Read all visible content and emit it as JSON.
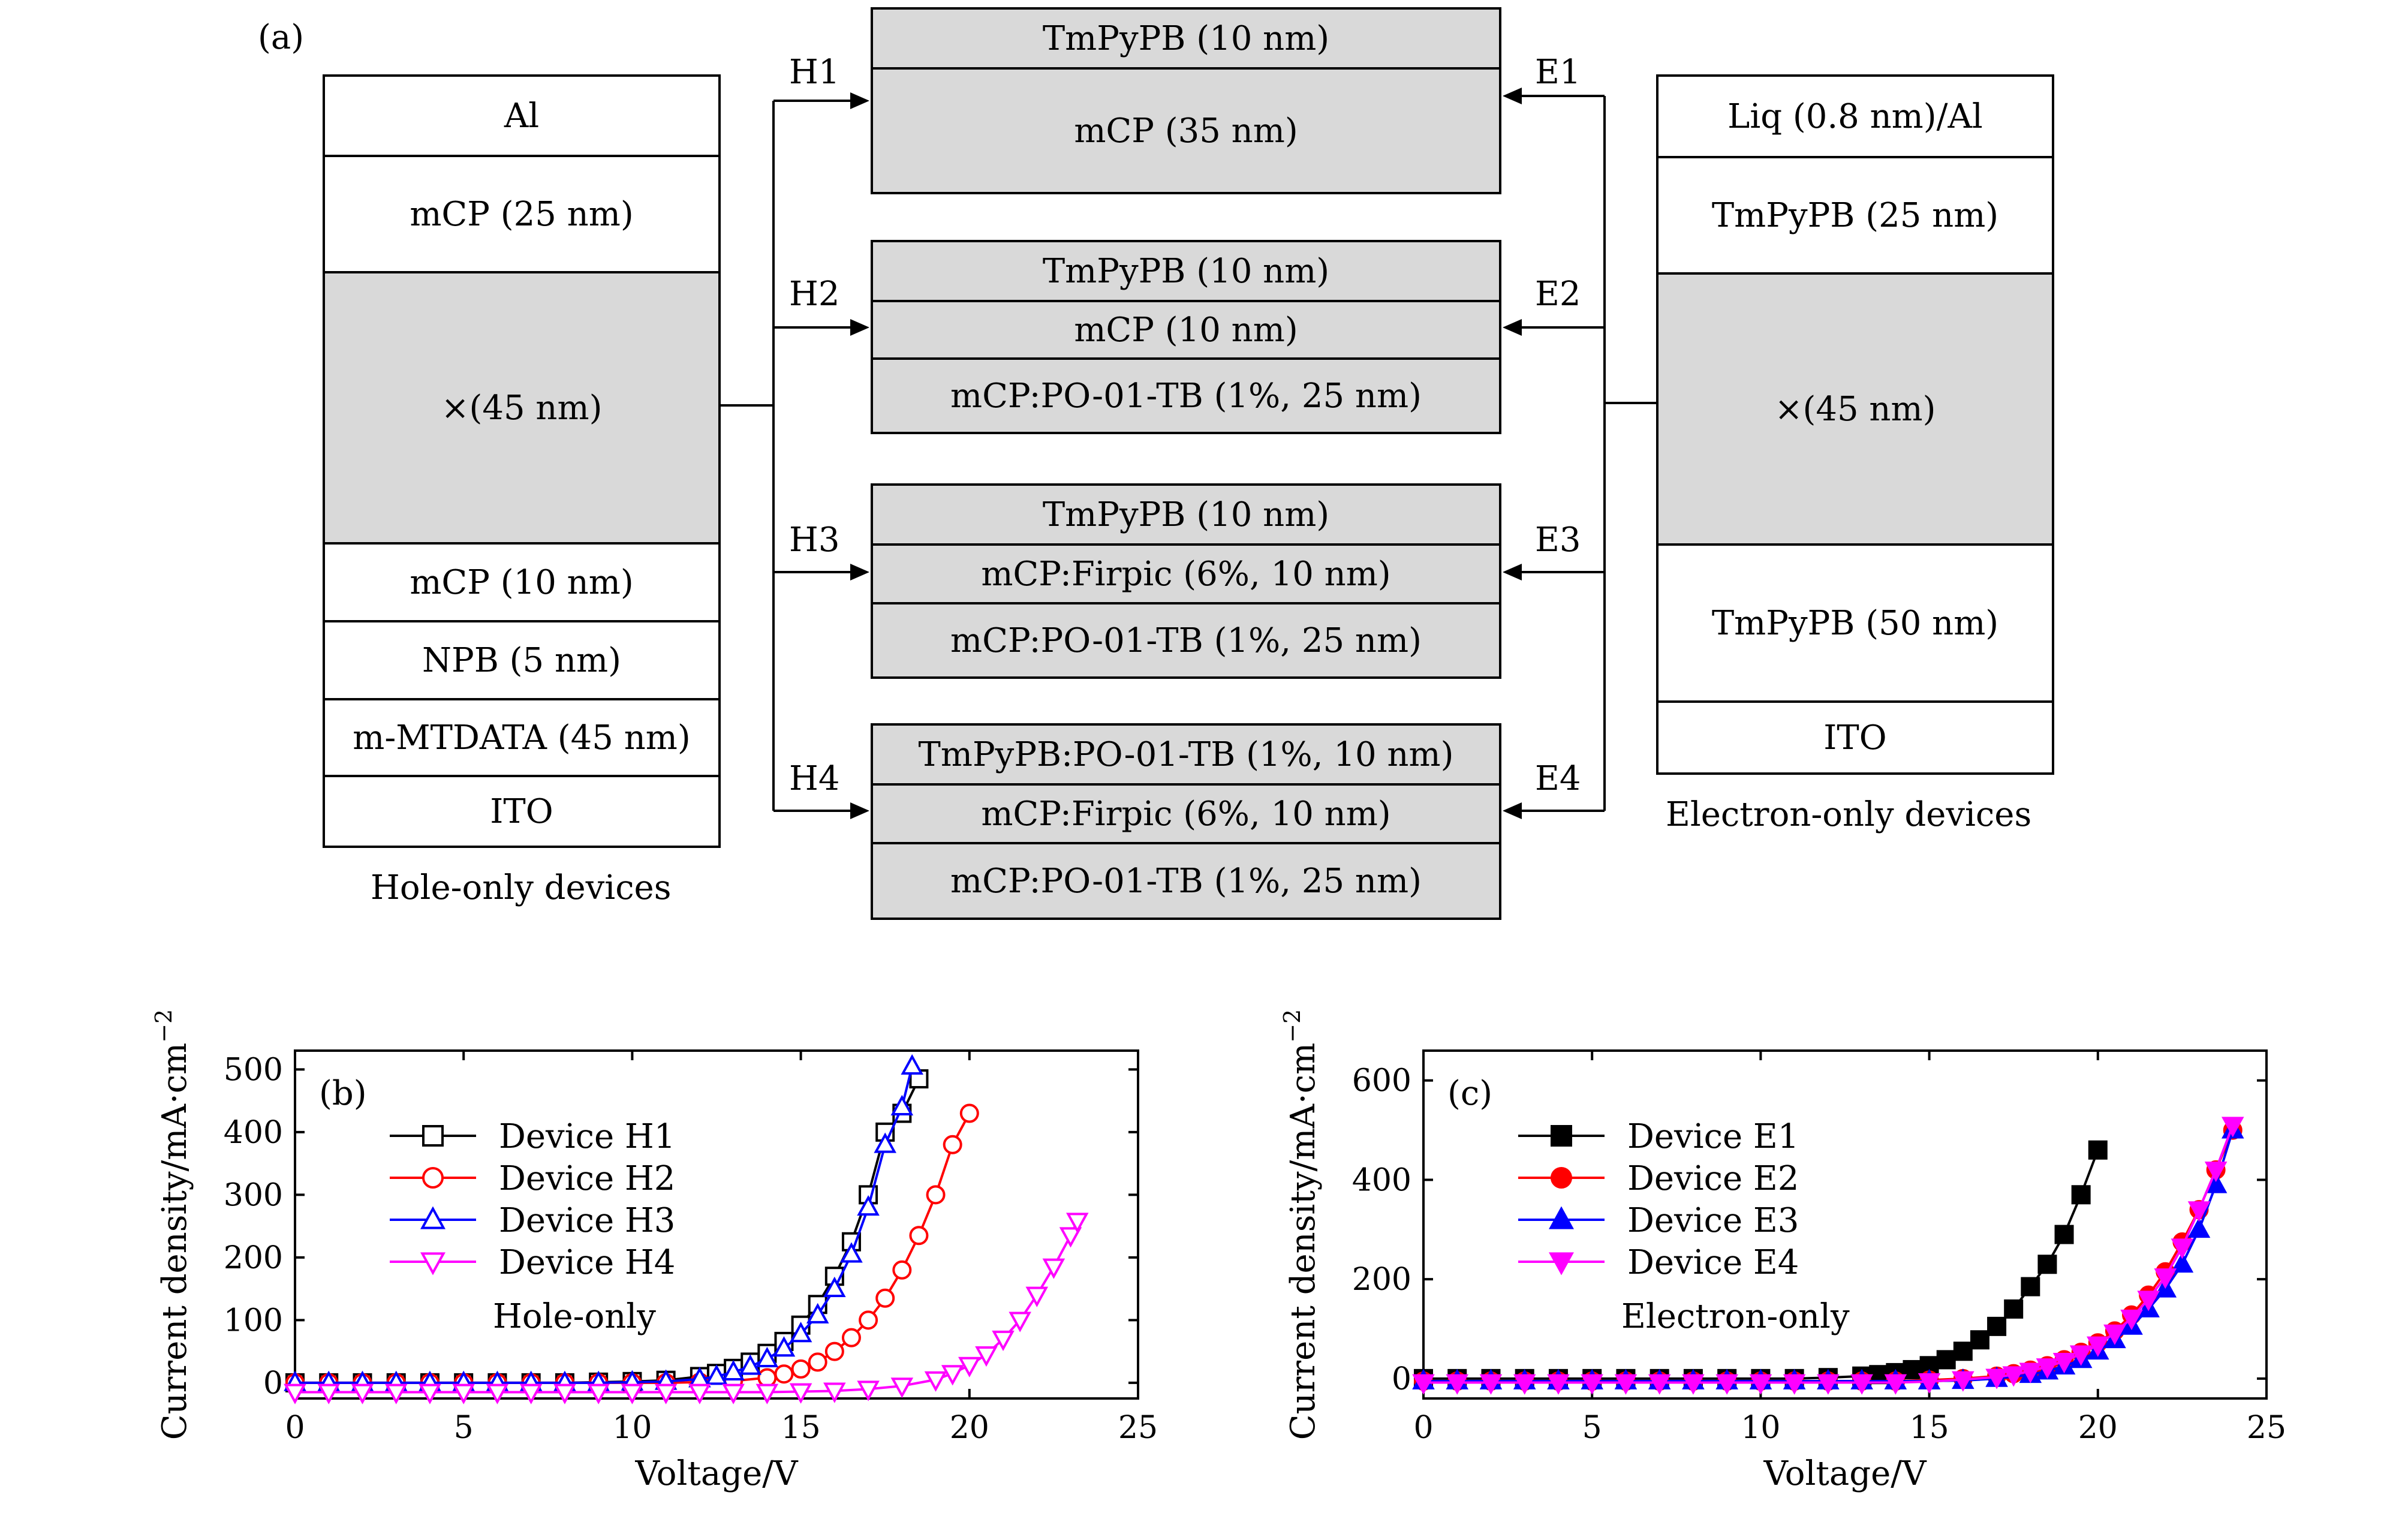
{
  "panel_a": {
    "label": "(a)",
    "hole_stack": [
      "Al",
      "mCP (25 nm)",
      "×(45 nm)",
      "mCP (10 nm)",
      "NPB (5 nm)",
      "m-MTDATA (45 nm)",
      "ITO"
    ],
    "hole_caption": "Hole-only devices",
    "electron_stack": [
      "Liq (0.8 nm)/Al",
      "TmPyPB (25 nm)",
      "×(45 nm)",
      "TmPyPB (50 nm)",
      "ITO"
    ],
    "electron_caption": "Electron-only devices",
    "devices": [
      {
        "h": "H1",
        "e": "E1",
        "layers": [
          "TmPyPB (10 nm)",
          "mCP (35 nm)"
        ]
      },
      {
        "h": "H2",
        "e": "E2",
        "layers": [
          "TmPyPB (10 nm)",
          "mCP (10 nm)",
          "mCP:PO-01-TB (1%, 25 nm)"
        ]
      },
      {
        "h": "H3",
        "e": "E3",
        "layers": [
          "TmPyPB (10 nm)",
          "mCP:Firpic (6%, 10 nm)",
          "mCP:PO-01-TB (1%, 25 nm)"
        ]
      },
      {
        "h": "H4",
        "e": "E4",
        "layers": [
          "TmPyPB:PO-01-TB (1%, 10 nm)",
          "mCP:Firpic (6%, 10 nm)",
          "mCP:PO-01-TB (1%, 25 nm)"
        ]
      }
    ]
  },
  "chart_data": [
    {
      "type": "line",
      "panel_label": "(b)",
      "annotation": "Hole-only",
      "xlabel": "Voltage/V",
      "ylabel": "Current density/mA·cm",
      "ylabel_sup": "−2",
      "xlim": [
        0,
        25
      ],
      "ylim": [
        -25,
        530
      ],
      "xticks": [
        0,
        5,
        10,
        15,
        20,
        25
      ],
      "yticks": [
        0,
        100,
        200,
        300,
        400,
        500
      ],
      "legend_position": "top-left",
      "series": [
        {
          "name": "Device H1",
          "color": "#000000",
          "marker": "square-open",
          "x": [
            0,
            1,
            2,
            3,
            4,
            5,
            6,
            7,
            8,
            9,
            10,
            11,
            12,
            12.5,
            13,
            13.5,
            14,
            14.5,
            15,
            15.5,
            16,
            16.5,
            17,
            17.5,
            18,
            18.5
          ],
          "y": [
            0,
            0,
            0,
            0,
            0,
            0,
            0,
            0,
            0,
            1,
            2,
            4,
            10,
            15,
            23,
            33,
            47,
            66,
            92,
            125,
            170,
            225,
            300,
            400,
            430,
            485
          ]
        },
        {
          "name": "Device H2",
          "color": "#ff0000",
          "marker": "circle-open",
          "x": [
            0,
            1,
            2,
            3,
            4,
            5,
            6,
            7,
            8,
            9,
            10,
            11,
            12,
            13,
            14,
            14.5,
            15,
            15.5,
            16,
            16.5,
            17,
            17.5,
            18,
            18.5,
            19,
            19.5,
            20
          ],
          "y": [
            0,
            0,
            0,
            0,
            0,
            0,
            0,
            0,
            0,
            0,
            0,
            0,
            1,
            3,
            8,
            14,
            22,
            33,
            50,
            72,
            100,
            135,
            180,
            235,
            300,
            380,
            430
          ]
        },
        {
          "name": "Device H3",
          "color": "#0000ff",
          "marker": "triangle-up-open",
          "x": [
            0,
            1,
            2,
            3,
            4,
            5,
            6,
            7,
            8,
            9,
            10,
            11,
            12,
            12.5,
            13,
            13.5,
            14,
            14.5,
            15,
            15.5,
            16,
            16.5,
            17,
            17.5,
            18,
            18.3
          ],
          "y": [
            0,
            0,
            0,
            0,
            0,
            0,
            0,
            0,
            0,
            0,
            1,
            2,
            6,
            10,
            17,
            26,
            38,
            55,
            78,
            108,
            150,
            205,
            280,
            380,
            440,
            505
          ]
        },
        {
          "name": "Device H4",
          "color": "#ff00ff",
          "marker": "triangle-down-open",
          "x": [
            0,
            1,
            2,
            3,
            4,
            5,
            6,
            7,
            8,
            9,
            10,
            11,
            12,
            13,
            14,
            15,
            16,
            17,
            18,
            19,
            19.5,
            20,
            20.5,
            21,
            21.5,
            22,
            22.5,
            23,
            23.2
          ],
          "y": [
            -15,
            -15,
            -15,
            -15,
            -15,
            -15,
            -15,
            -15,
            -15,
            -15,
            -15,
            -15,
            -15,
            -15,
            -15,
            -14,
            -13,
            -10,
            -5,
            5,
            15,
            28,
            45,
            70,
            100,
            140,
            185,
            235,
            258
          ]
        }
      ]
    },
    {
      "type": "line",
      "panel_label": "(c)",
      "annotation": "Electron-only",
      "xlabel": "Voltage/V",
      "ylabel": "Current density/mA·cm",
      "ylabel_sup": "−2",
      "xlim": [
        0,
        25
      ],
      "ylim": [
        -40,
        660
      ],
      "xticks": [
        0,
        5,
        10,
        15,
        20,
        25
      ],
      "yticks": [
        0,
        200,
        400,
        600
      ],
      "legend_position": "top-left",
      "series": [
        {
          "name": "Device E1",
          "color": "#000000",
          "marker": "square-filled",
          "x": [
            0,
            1,
            2,
            3,
            4,
            5,
            6,
            7,
            8,
            9,
            10,
            11,
            12,
            13,
            13.5,
            14,
            14.5,
            15,
            15.5,
            16,
            16.5,
            17,
            17.5,
            18,
            18.5,
            19,
            19.5,
            20
          ],
          "y": [
            0,
            0,
            0,
            0,
            0,
            0,
            0,
            0,
            0,
            0,
            0,
            0,
            2,
            5,
            8,
            12,
            18,
            26,
            38,
            55,
            78,
            105,
            140,
            185,
            230,
            290,
            370,
            460
          ]
        },
        {
          "name": "Device E2",
          "color": "#ff0000",
          "marker": "circle-filled",
          "x": [
            0,
            1,
            2,
            3,
            4,
            5,
            6,
            7,
            8,
            9,
            10,
            11,
            12,
            13,
            14,
            15,
            16,
            17,
            17.5,
            18,
            18.5,
            19,
            19.5,
            20,
            20.5,
            21,
            21.5,
            22,
            22.5,
            23,
            23.5,
            24
          ],
          "y": [
            -5,
            -5,
            -5,
            -5,
            -5,
            -5,
            -5,
            -5,
            -5,
            -5,
            -5,
            -5,
            -5,
            -5,
            -5,
            -3,
            0,
            5,
            10,
            17,
            26,
            38,
            53,
            72,
            96,
            128,
            168,
            215,
            275,
            340,
            420,
            500
          ]
        },
        {
          "name": "Device E3",
          "color": "#0000ff",
          "marker": "triangle-up-filled",
          "x": [
            0,
            1,
            2,
            3,
            4,
            5,
            6,
            7,
            8,
            9,
            10,
            11,
            12,
            13,
            14,
            15,
            16,
            17,
            18,
            18.5,
            19,
            19.5,
            20,
            20.5,
            21,
            21.5,
            22,
            22.5,
            23,
            23.5,
            24
          ],
          "y": [
            -5,
            -5,
            -5,
            -5,
            -5,
            -5,
            -5,
            -5,
            -5,
            -5,
            -5,
            -5,
            -5,
            -5,
            -5,
            -5,
            -4,
            0,
            8,
            15,
            25,
            38,
            55,
            78,
            105,
            140,
            180,
            230,
            300,
            390,
            500
          ]
        },
        {
          "name": "Device E4",
          "color": "#ff00ff",
          "marker": "triangle-down-filled",
          "x": [
            0,
            1,
            2,
            3,
            4,
            5,
            6,
            7,
            8,
            9,
            10,
            11,
            12,
            13,
            14,
            15,
            16,
            17,
            17.5,
            18,
            18.5,
            19,
            19.5,
            20,
            20.5,
            21,
            21.5,
            22,
            22.5,
            23,
            23.5,
            24
          ],
          "y": [
            -8,
            -8,
            -8,
            -8,
            -8,
            -8,
            -8,
            -8,
            -8,
            -8,
            -8,
            -8,
            -8,
            -8,
            -8,
            -6,
            -2,
            3,
            8,
            15,
            24,
            35,
            50,
            68,
            92,
            122,
            160,
            205,
            265,
            340,
            420,
            510
          ]
        }
      ]
    }
  ]
}
